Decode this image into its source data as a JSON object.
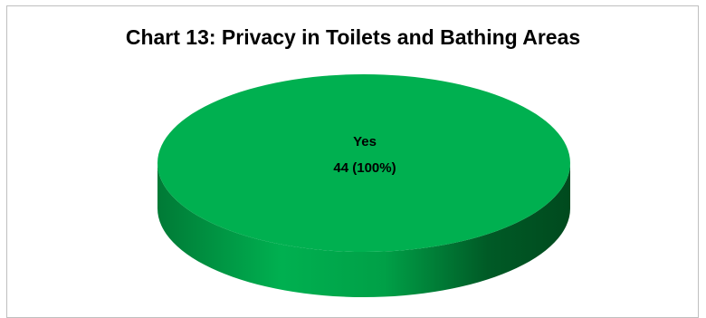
{
  "chart_data": {
    "type": "pie",
    "title": "Chart 13: Privacy in Toilets and Bathing Areas",
    "slices": [
      {
        "label": "Yes",
        "value": 44,
        "percent": "100%",
        "data_label": "44 (100%)",
        "color": "#00b050"
      }
    ],
    "style": "3d"
  }
}
